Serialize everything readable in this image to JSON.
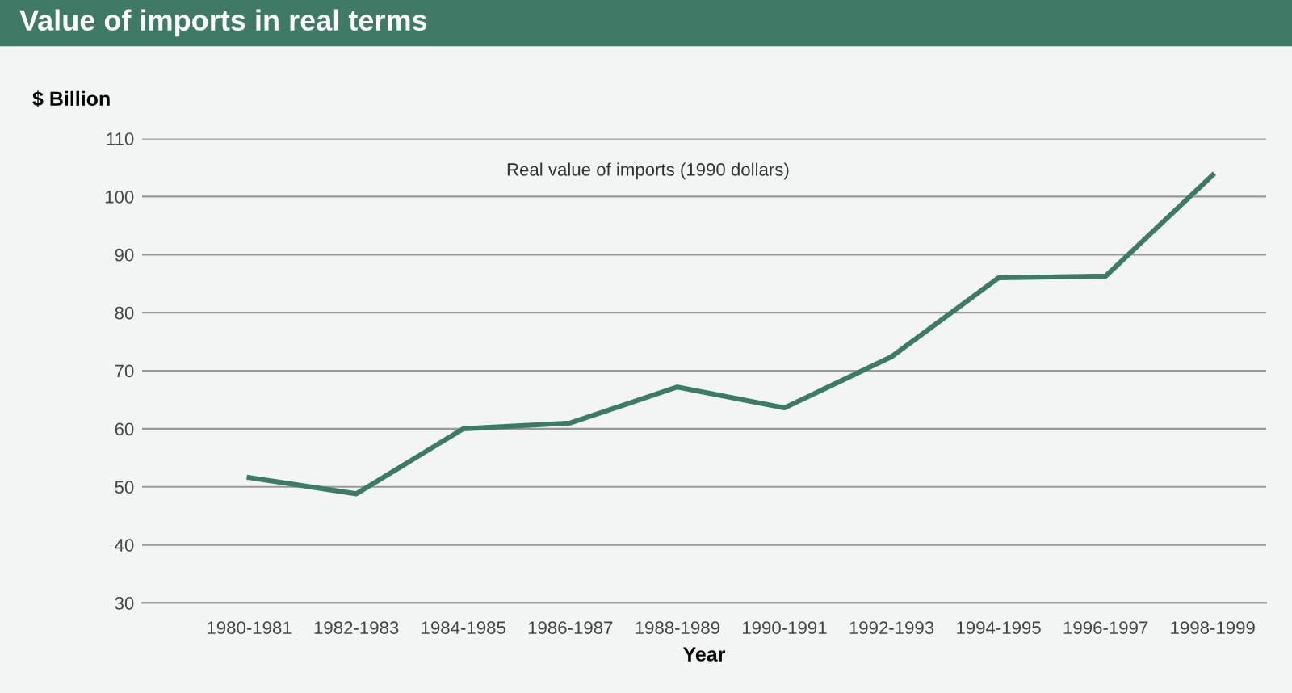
{
  "chart_data": {
    "type": "line",
    "title": "Value of imports in real terms",
    "ylabel": "$ Billion",
    "xlabel": "Year",
    "categories": [
      "1980-1981",
      "1982-1983",
      "1984-1985",
      "1986-1987",
      "1988-1989",
      "1990-1991",
      "1992-1993",
      "1994-1995",
      "1996-1997",
      "1998-1999"
    ],
    "series": [
      {
        "color": "#3d7a68",
        "values": [
          51.6,
          48.8,
          60,
          61,
          67.2,
          63.6,
          72.4,
          86,
          86.3,
          103.7
        ]
      }
    ],
    "annotations": [
      "Real value of imports (1990 dollars)"
    ],
    "ylim": [
      30,
      110
    ],
    "yticks": [
      30,
      40,
      50,
      60,
      70,
      80,
      90,
      100,
      110
    ],
    "grid": "y",
    "legend": false,
    "marker": "none",
    "line_style": "solid"
  }
}
